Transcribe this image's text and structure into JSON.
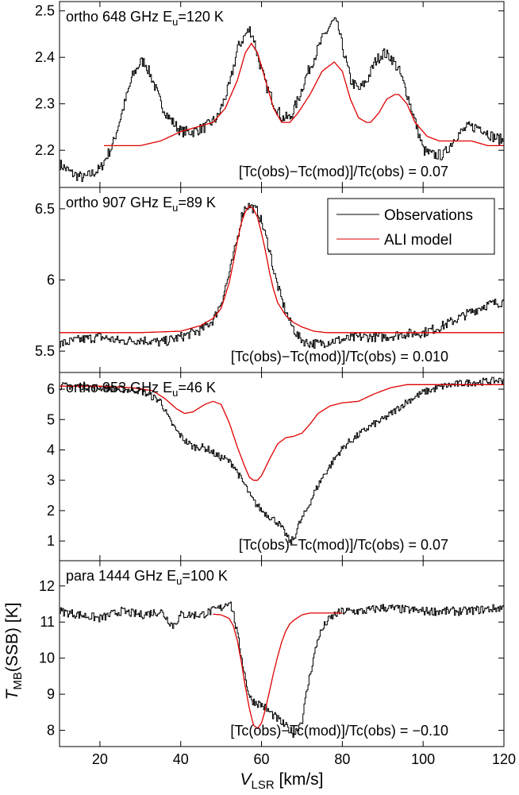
{
  "figure": {
    "ylabel_main": "T",
    "ylabel_sub": "MB",
    "ylabel_rest": "(SSB) [K]",
    "xlabel_main": "V",
    "xlabel_sub": "LSR",
    "xlabel_rest": " [km/s]"
  },
  "legend": {
    "placement": "top-right of panel 2",
    "items": [
      {
        "label": "Observations",
        "color": "#000000"
      },
      {
        "label": "ALI model",
        "color": "#e00000"
      }
    ]
  },
  "chart_data": [
    {
      "type": "line",
      "title_prefix": "ortho 648 GHz E",
      "title_sub": "u",
      "title_suffix": "=120 K",
      "annotation": "[Tc(obs)−Tc(mod)]/Tc(obs) = 0.07",
      "xlim": [
        10,
        120
      ],
      "ylim": [
        2.12,
        2.52
      ],
      "yticks": [
        2.2,
        2.3,
        2.4,
        2.5
      ],
      "ytick_labels": [
        "2.2",
        "2.3",
        "2.4",
        "2.5"
      ],
      "noise": 0.012,
      "series": [
        {
          "name": "Observations",
          "color": "#000000",
          "x": [
            10,
            13,
            16,
            20,
            23,
            26,
            28,
            30,
            31,
            33,
            35,
            37,
            40,
            43,
            46,
            49,
            52,
            54,
            56,
            57,
            58,
            59,
            61,
            63,
            65,
            67,
            69,
            71,
            73,
            75,
            77,
            78,
            79,
            80,
            82,
            84,
            86,
            88,
            90,
            92,
            94,
            96,
            98,
            100,
            102,
            105,
            108,
            111,
            114,
            117,
            120
          ],
          "y": [
            2.17,
            2.15,
            2.14,
            2.16,
            2.21,
            2.3,
            2.36,
            2.39,
            2.39,
            2.35,
            2.3,
            2.27,
            2.24,
            2.24,
            2.25,
            2.27,
            2.34,
            2.42,
            2.45,
            2.46,
            2.44,
            2.4,
            2.34,
            2.3,
            2.27,
            2.27,
            2.31,
            2.36,
            2.4,
            2.44,
            2.47,
            2.48,
            2.46,
            2.42,
            2.35,
            2.33,
            2.35,
            2.39,
            2.41,
            2.4,
            2.37,
            2.32,
            2.26,
            2.2,
            2.19,
            2.19,
            2.23,
            2.25,
            2.25,
            2.23,
            2.22
          ]
        },
        {
          "name": "ALI model",
          "color": "#e00000",
          "x": [
            21,
            30,
            35,
            40,
            44,
            48,
            51,
            54,
            56,
            57.5,
            59,
            61,
            63,
            65,
            67,
            69,
            72,
            75,
            78,
            80,
            82,
            84,
            86,
            87,
            89,
            91,
            93,
            94,
            96,
            98,
            101,
            104,
            108,
            112,
            116,
            120
          ],
          "y": [
            2.21,
            2.21,
            2.22,
            2.24,
            2.25,
            2.26,
            2.29,
            2.35,
            2.41,
            2.43,
            2.41,
            2.35,
            2.29,
            2.26,
            2.26,
            2.28,
            2.32,
            2.37,
            2.39,
            2.37,
            2.31,
            2.27,
            2.26,
            2.26,
            2.28,
            2.31,
            2.32,
            2.32,
            2.3,
            2.26,
            2.23,
            2.22,
            2.22,
            2.22,
            2.21,
            2.21
          ]
        }
      ]
    },
    {
      "type": "line",
      "title_prefix": "ortho 907 GHz E",
      "title_sub": "u",
      "title_suffix": "=89 K",
      "annotation": "[Tc(obs)−Tc(mod)]/Tc(obs) = 0.010",
      "xlim": [
        10,
        120
      ],
      "ylim": [
        5.35,
        6.65
      ],
      "yticks": [
        5.5,
        6.0,
        6.5
      ],
      "ytick_labels": [
        "5.5",
        "6",
        "6.5"
      ],
      "noise": 0.035,
      "series": [
        {
          "name": "Observations",
          "color": "#000000",
          "x": [
            10,
            15,
            20,
            25,
            30,
            35,
            40,
            45,
            48,
            50,
            52,
            54,
            55,
            56,
            57,
            58,
            59,
            60,
            61,
            62,
            63,
            65,
            67,
            69,
            71,
            74,
            77,
            80,
            85,
            90,
            95,
            100,
            105,
            110,
            115,
            120
          ],
          "y": [
            5.55,
            5.58,
            5.6,
            5.57,
            5.58,
            5.56,
            5.6,
            5.65,
            5.72,
            5.85,
            6.05,
            6.3,
            6.45,
            6.52,
            6.52,
            6.5,
            6.48,
            6.4,
            6.3,
            6.2,
            6.05,
            5.85,
            5.7,
            5.6,
            5.56,
            5.55,
            5.57,
            5.58,
            5.6,
            5.6,
            5.62,
            5.63,
            5.68,
            5.75,
            5.82,
            5.85
          ]
        },
        {
          "name": "ALI model",
          "color": "#e00000",
          "x": [
            10,
            20,
            30,
            40,
            45,
            48,
            50,
            52,
            53,
            54,
            55,
            56,
            57,
            58,
            59,
            60,
            61,
            62,
            63,
            64,
            66,
            68,
            70,
            73,
            76,
            80,
            90,
            100,
            110,
            120
          ],
          "y": [
            5.63,
            5.63,
            5.63,
            5.64,
            5.68,
            5.73,
            5.8,
            5.98,
            6.12,
            6.27,
            6.4,
            6.48,
            6.52,
            6.5,
            6.44,
            6.33,
            6.2,
            6.05,
            5.93,
            5.84,
            5.75,
            5.7,
            5.67,
            5.64,
            5.63,
            5.63,
            5.63,
            5.63,
            5.63,
            5.63
          ]
        }
      ]
    },
    {
      "type": "line",
      "title_prefix": "ortho 953 GHz E",
      "title_sub": "u",
      "title_suffix": "=46 K",
      "annotation": "[Tc(obs)−Tc(mod)]/Tc(obs) = 0.07",
      "xlim": [
        10,
        120
      ],
      "ylim": [
        0.35,
        6.55
      ],
      "yticks": [
        1,
        2,
        3,
        4,
        5,
        6
      ],
      "ytick_labels": [
        "1",
        "2",
        "3",
        "4",
        "5",
        "6"
      ],
      "noise": 0.12,
      "series": [
        {
          "name": "Observations",
          "color": "#000000",
          "x": [
            10,
            15,
            20,
            25,
            30,
            35,
            37,
            39,
            41,
            43,
            45,
            47,
            49,
            51,
            53,
            55,
            56,
            57,
            58,
            60,
            62,
            64,
            66,
            67,
            68,
            69,
            71,
            73,
            75,
            77,
            79,
            81,
            84,
            87,
            90,
            93,
            96,
            100,
            105,
            110,
            115,
            120
          ],
          "y": [
            6.1,
            6.1,
            6.05,
            6.0,
            5.95,
            5.6,
            5.0,
            4.6,
            4.3,
            4.1,
            4.1,
            4.0,
            3.8,
            3.7,
            3.5,
            3.0,
            2.8,
            2.5,
            2.3,
            2.0,
            1.8,
            1.6,
            1.2,
            0.95,
            1.1,
            1.5,
            2.0,
            2.6,
            3.1,
            3.5,
            3.9,
            4.2,
            4.5,
            4.8,
            5.0,
            5.3,
            5.6,
            5.9,
            6.1,
            6.2,
            6.25,
            6.3
          ]
        },
        {
          "name": "ALI model",
          "color": "#e00000",
          "x": [
            10,
            20,
            28,
            33,
            36,
            39,
            41,
            43,
            46,
            48,
            50,
            52,
            54,
            56,
            57,
            58,
            59,
            60,
            62,
            64,
            66,
            68,
            70,
            72,
            74,
            77,
            80,
            84,
            88,
            92,
            96,
            100,
            110,
            120
          ],
          "y": [
            6.1,
            6.1,
            6.05,
            5.95,
            5.7,
            5.35,
            5.2,
            5.25,
            5.5,
            5.6,
            5.5,
            4.9,
            4.1,
            3.4,
            3.1,
            3.0,
            3.0,
            3.15,
            3.7,
            4.2,
            4.4,
            4.45,
            4.55,
            4.85,
            5.2,
            5.45,
            5.55,
            5.6,
            5.85,
            6.05,
            6.15,
            6.15,
            6.15,
            6.15
          ]
        }
      ]
    },
    {
      "type": "line",
      "title_prefix": "para 1444 GHz E",
      "title_sub": "u",
      "title_suffix": "=100 K",
      "annotation": "[Tc(obs)−Tc(mod)]/Tc(obs) = −0.10",
      "xlim": [
        10,
        120
      ],
      "ylim": [
        7.55,
        12.7
      ],
      "yticks": [
        8,
        9,
        10,
        11,
        12
      ],
      "ytick_labels": [
        "8",
        "9",
        "10",
        "11",
        "12"
      ],
      "xticks": [
        20,
        40,
        60,
        80,
        100,
        120
      ],
      "xtick_labels": [
        "20",
        "40",
        "60",
        "80",
        "100",
        "120"
      ],
      "noise": 0.12,
      "series": [
        {
          "name": "Observations",
          "color": "#000000",
          "x": [
            10,
            15,
            20,
            25,
            30,
            35,
            38,
            40,
            45,
            50,
            52,
            53,
            54,
            55,
            56,
            57,
            58,
            60,
            62,
            64,
            66,
            67,
            68,
            69,
            70,
            71,
            72,
            73,
            74,
            76,
            78,
            80,
            85,
            90,
            100,
            110,
            120
          ],
          "y": [
            11.3,
            11.2,
            11.1,
            11.3,
            11.2,
            11.3,
            10.9,
            11.2,
            11.2,
            11.4,
            11.6,
            11.2,
            10.6,
            10.0,
            9.4,
            8.9,
            8.8,
            8.7,
            8.5,
            8.3,
            8.1,
            8.0,
            7.9,
            8.1,
            8.3,
            9.0,
            9.6,
            10.1,
            10.6,
            11.0,
            11.2,
            11.3,
            11.3,
            11.4,
            11.3,
            11.3,
            11.4
          ]
        },
        {
          "name": "ALI model",
          "color": "#e00000",
          "x": [
            48,
            50,
            52,
            53,
            54,
            55,
            56,
            57,
            58,
            59,
            60,
            61,
            62,
            63,
            64,
            65,
            66,
            67,
            68,
            70,
            72,
            74,
            77,
            80
          ],
          "y": [
            11.22,
            11.2,
            11.1,
            10.9,
            10.5,
            9.9,
            9.2,
            8.6,
            8.15,
            8.05,
            8.2,
            8.6,
            9.1,
            9.6,
            10.05,
            10.45,
            10.75,
            10.95,
            11.05,
            11.2,
            11.25,
            11.25,
            11.25,
            11.25
          ]
        }
      ]
    }
  ]
}
